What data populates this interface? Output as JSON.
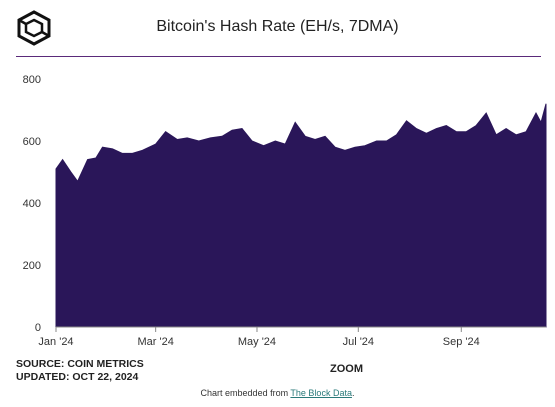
{
  "header": {
    "logo_icon": "cube-logo-icon"
  },
  "chart_data": {
    "type": "area",
    "title": "Bitcoin's Hash Rate (EH/s, 7DMA)",
    "xlabel": "",
    "ylabel": "",
    "color": "#2a1659",
    "ylim": [
      0,
      800
    ],
    "yticks": [
      0,
      200,
      400,
      600,
      800
    ],
    "xticks": [
      {
        "label": "Jan '24",
        "date": "2024-01-01"
      },
      {
        "label": "Mar '24",
        "date": "2024-03-01"
      },
      {
        "label": "May '24",
        "date": "2024-05-01"
      },
      {
        "label": "Jul '24",
        "date": "2024-07-01"
      },
      {
        "label": "Sep '24",
        "date": "2024-09-01"
      }
    ],
    "xlim": [
      "2024-01-01",
      "2024-10-22"
    ],
    "grid": false,
    "series": [
      {
        "x": [
          "2024-01-01",
          "2024-01-05",
          "2024-01-10",
          "2024-01-14",
          "2024-01-20",
          "2024-01-25",
          "2024-01-29",
          "2024-02-04",
          "2024-02-10",
          "2024-02-16",
          "2024-02-22",
          "2024-03-01",
          "2024-03-07",
          "2024-03-14",
          "2024-03-20",
          "2024-03-27",
          "2024-04-03",
          "2024-04-10",
          "2024-04-16",
          "2024-04-22",
          "2024-04-28",
          "2024-05-05",
          "2024-05-12",
          "2024-05-18",
          "2024-05-24",
          "2024-05-30",
          "2024-06-05",
          "2024-06-11",
          "2024-06-17",
          "2024-06-23",
          "2024-06-29",
          "2024-07-05",
          "2024-07-12",
          "2024-07-18",
          "2024-07-24",
          "2024-07-30",
          "2024-08-05",
          "2024-08-11",
          "2024-08-17",
          "2024-08-23",
          "2024-08-29",
          "2024-09-04",
          "2024-09-10",
          "2024-09-16",
          "2024-09-22",
          "2024-09-28",
          "2024-10-04",
          "2024-10-10",
          "2024-10-16",
          "2024-10-19",
          "2024-10-22"
        ],
        "values": [
          510,
          540,
          500,
          470,
          540,
          545,
          580,
          575,
          560,
          560,
          570,
          590,
          630,
          605,
          610,
          600,
          610,
          615,
          635,
          640,
          600,
          585,
          600,
          590,
          660,
          615,
          605,
          615,
          580,
          570,
          580,
          585,
          600,
          600,
          620,
          665,
          640,
          625,
          640,
          650,
          630,
          630,
          650,
          690,
          620,
          640,
          620,
          630,
          690,
          660,
          720
        ]
      }
    ]
  },
  "footer": {
    "source": "SOURCE: COIN METRICS",
    "updated": "UPDATED: OCT 22, 2024",
    "zoom": "ZOOM",
    "embed_prefix": "Chart embedded from ",
    "embed_link": "The Block Data",
    "embed_suffix": "."
  }
}
